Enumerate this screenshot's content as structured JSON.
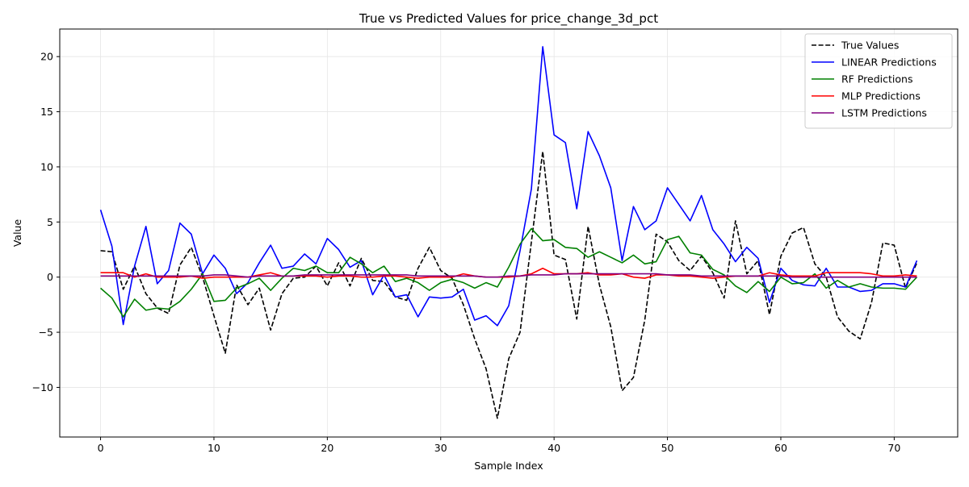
{
  "chart_data": {
    "type": "line",
    "title": "True vs Predicted Values for price_change_3d_pct",
    "xlabel": "Sample Index",
    "ylabel": "Value",
    "xlim": [
      -3.6,
      75.6
    ],
    "ylim": [
      -14.5,
      22.5
    ],
    "xticks": [
      0,
      10,
      20,
      30,
      40,
      50,
      60,
      70
    ],
    "yticks": [
      -10,
      -5,
      0,
      5,
      10,
      15,
      20
    ],
    "ytick_labels": [
      "−10",
      "−5",
      "0",
      "5",
      "10",
      "15",
      "20"
    ],
    "grid": true,
    "legend_position": "top-right",
    "x": [
      0,
      1,
      2,
      3,
      4,
      5,
      6,
      7,
      8,
      9,
      10,
      11,
      12,
      13,
      14,
      15,
      16,
      17,
      18,
      19,
      20,
      21,
      22,
      23,
      24,
      25,
      26,
      27,
      28,
      29,
      30,
      31,
      32,
      33,
      34,
      35,
      36,
      37,
      38,
      39,
      40,
      41,
      42,
      43,
      44,
      45,
      46,
      47,
      48,
      49,
      50,
      51,
      52,
      53,
      54,
      55,
      56,
      57,
      58,
      59,
      60,
      61,
      62,
      63,
      64,
      65,
      66,
      67,
      68,
      69,
      70,
      71,
      72
    ],
    "series": [
      {
        "name": "True Values",
        "color": "#000000",
        "dash": "dashed",
        "values": [
          2.4,
          2.3,
          -1.1,
          1.0,
          -1.5,
          -2.8,
          -3.3,
          1.1,
          2.7,
          0.0,
          -3.5,
          -6.9,
          -0.7,
          -2.5,
          -1.0,
          -4.8,
          -1.5,
          -0.1,
          0.0,
          1.0,
          -0.8,
          1.3,
          -0.8,
          1.7,
          -0.3,
          -0.4,
          -1.8,
          -2.1,
          0.8,
          2.7,
          0.6,
          -0.1,
          -2.5,
          -5.6,
          -8.3,
          -12.8,
          -7.4,
          -5.0,
          3.2,
          11.4,
          2.0,
          1.6,
          -3.8,
          4.6,
          -0.7,
          -4.5,
          -10.3,
          -9.1,
          -3.9,
          3.9,
          3.2,
          1.5,
          0.6,
          1.9,
          0.4,
          -1.9,
          5.1,
          0.3,
          1.5,
          -3.4,
          1.9,
          4.0,
          4.5,
          1.2,
          0.0,
          -3.6,
          -4.9,
          -5.6,
          -2.3,
          3.1,
          2.9,
          -1.0,
          1.3
        ]
      },
      {
        "name": "LINEAR Predictions",
        "color": "#0000ff",
        "dash": "solid",
        "values": [
          6.1,
          2.8,
          -4.3,
          1.0,
          4.6,
          -0.6,
          0.6,
          4.9,
          3.9,
          0.3,
          2.0,
          0.8,
          -1.5,
          -0.5,
          1.3,
          2.9,
          0.8,
          1.0,
          2.1,
          1.2,
          3.5,
          2.5,
          0.9,
          1.5,
          -1.6,
          0.2,
          -1.8,
          -1.6,
          -3.6,
          -1.8,
          -1.9,
          -1.8,
          -1.1,
          -3.9,
          -3.5,
          -4.4,
          -2.6,
          2.4,
          8.0,
          20.9,
          12.9,
          12.2,
          6.2,
          13.2,
          11.0,
          8.1,
          1.5,
          6.4,
          4.3,
          5.1,
          8.1,
          6.6,
          5.1,
          7.4,
          4.3,
          3.0,
          1.4,
          2.7,
          1.7,
          -2.3,
          0.8,
          -0.3,
          -0.7,
          -0.8,
          0.8,
          -0.9,
          -0.9,
          -1.3,
          -1.2,
          -0.6,
          -0.6,
          -0.9,
          1.5
        ]
      },
      {
        "name": "RF Predictions",
        "color": "#008000",
        "dash": "solid",
        "values": [
          -1.0,
          -1.9,
          -3.6,
          -2.0,
          -3.0,
          -2.8,
          -2.9,
          -2.2,
          -1.1,
          0.3,
          -2.2,
          -2.1,
          -1.0,
          -0.6,
          -0.1,
          -1.2,
          -0.1,
          0.8,
          0.6,
          1.0,
          0.4,
          0.4,
          1.8,
          1.2,
          0.4,
          1.0,
          -0.4,
          -0.1,
          -0.5,
          -1.2,
          -0.5,
          -0.2,
          -0.5,
          -1.0,
          -0.5,
          -0.9,
          0.9,
          3.0,
          4.4,
          3.3,
          3.4,
          2.7,
          2.6,
          1.8,
          2.3,
          1.8,
          1.3,
          2.0,
          1.2,
          1.4,
          3.4,
          3.7,
          2.2,
          2.0,
          0.7,
          0.2,
          -0.8,
          -1.4,
          -0.4,
          -1.3,
          0.0,
          -0.6,
          -0.5,
          0.3,
          -1.0,
          -0.3,
          -0.9,
          -0.6,
          -0.9,
          -1.0,
          -1.0,
          -1.1,
          0.0
        ]
      },
      {
        "name": "MLP Predictions",
        "color": "#ff0000",
        "dash": "solid",
        "values": [
          0.4,
          0.4,
          0.4,
          0.0,
          0.3,
          0.0,
          0.0,
          0.0,
          0.1,
          -0.1,
          0.0,
          0.0,
          0.0,
          0.0,
          0.2,
          0.4,
          0.1,
          0.1,
          0.1,
          0.1,
          0.0,
          0.1,
          0.1,
          0.0,
          0.0,
          0.1,
          0.1,
          0.0,
          -0.1,
          0.0,
          0.0,
          0.0,
          0.3,
          0.1,
          0.0,
          0.0,
          0.0,
          0.1,
          0.3,
          0.8,
          0.3,
          0.3,
          0.3,
          0.4,
          0.2,
          0.2,
          0.3,
          0.0,
          -0.1,
          0.2,
          0.2,
          0.1,
          0.1,
          0.0,
          -0.1,
          0.0,
          0.1,
          0.1,
          0.1,
          0.4,
          0.2,
          0.1,
          0.1,
          0.1,
          0.4,
          0.4,
          0.4,
          0.4,
          0.3,
          0.1,
          0.1,
          0.2,
          0.1
        ]
      },
      {
        "name": "LSTM Predictions",
        "color": "#800080",
        "dash": "solid",
        "values": [
          0.1,
          0.1,
          0.1,
          0.1,
          0.1,
          0.1,
          0.1,
          0.1,
          0.1,
          0.1,
          0.2,
          0.2,
          0.1,
          0.0,
          0.1,
          0.1,
          0.1,
          0.1,
          0.2,
          0.2,
          0.2,
          0.2,
          0.2,
          0.2,
          0.2,
          0.2,
          0.2,
          0.2,
          0.1,
          0.1,
          0.1,
          0.1,
          0.1,
          0.1,
          0.0,
          0.0,
          0.1,
          0.1,
          0.2,
          0.2,
          0.2,
          0.3,
          0.3,
          0.3,
          0.3,
          0.3,
          0.3,
          0.3,
          0.3,
          0.3,
          0.2,
          0.2,
          0.2,
          0.1,
          0.1,
          0.1,
          0.1,
          0.1,
          0.1,
          0.1,
          0.1,
          0.0,
          0.0,
          0.0,
          0.0,
          0.0,
          0.0,
          0.0,
          0.0,
          0.0,
          0.0,
          0.0,
          0.0
        ]
      }
    ]
  }
}
